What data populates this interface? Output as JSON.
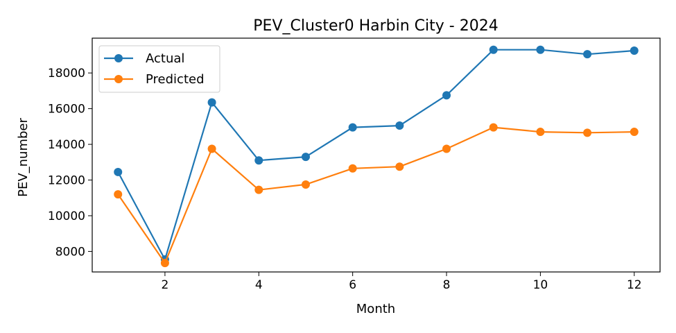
{
  "chart_data": {
    "type": "line",
    "title": "PEV_Cluster0 Harbin City - 2024",
    "xlabel": "Month",
    "ylabel": "PEV_number",
    "x": [
      1,
      2,
      3,
      4,
      5,
      6,
      7,
      8,
      9,
      10,
      11,
      12
    ],
    "xlim": [
      0.45,
      12.55
    ],
    "ylim": [
      6850,
      19950
    ],
    "xticks": [
      2,
      4,
      6,
      8,
      10,
      12
    ],
    "yticks": [
      8000,
      10000,
      12000,
      14000,
      16000,
      18000
    ],
    "grid": false,
    "legend": "top-left",
    "series": [
      {
        "name": "Actual",
        "color": "#1f77b4",
        "marker": "circle",
        "values": [
          12450,
          7550,
          16350,
          13100,
          13300,
          14950,
          15050,
          16750,
          19300,
          19300,
          19050,
          19250
        ]
      },
      {
        "name": "Predicted",
        "color": "#ff7f0e",
        "marker": "circle",
        "values": [
          11200,
          7350,
          13750,
          11450,
          11750,
          12650,
          12750,
          13750,
          14950,
          14700,
          14650,
          14700
        ]
      }
    ]
  }
}
